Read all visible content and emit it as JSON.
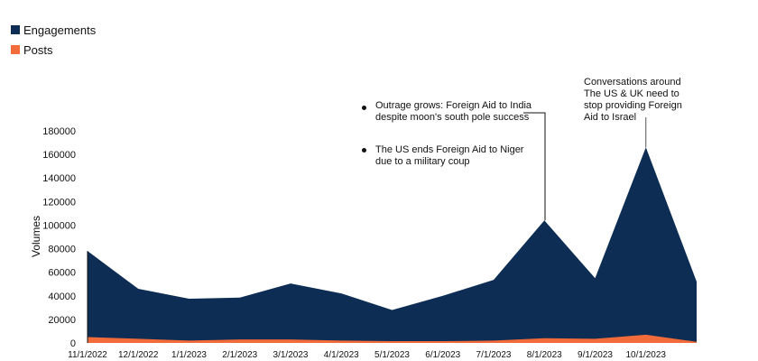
{
  "legend": [
    {
      "label": "Engagements",
      "color": "#0d2d54"
    },
    {
      "label": "Posts",
      "color": "#f26b3a"
    }
  ],
  "annotations": {
    "aug_1": "Outrage grows: Foreign Aid to India despite moon's south pole success",
    "aug_2": "The US ends Foreign Aid to Niger due to a military coup",
    "oct": "Conversations around The US & UK need to stop providing Foreign Aid to Israel"
  },
  "chart_data": {
    "type": "area",
    "title": "",
    "xlabel": "",
    "ylabel": "Volumes",
    "ylim": [
      0,
      180000
    ],
    "yticks": [
      0,
      20000,
      40000,
      60000,
      80000,
      100000,
      120000,
      140000,
      160000,
      180000
    ],
    "grid": false,
    "legend_position": "top-left",
    "categories": [
      "11/1/2022",
      "12/1/2022",
      "1/1/2023",
      "2/1/2023",
      "3/1/2023",
      "4/1/2023",
      "5/1/2023",
      "6/1/2023",
      "7/1/2023",
      "8/1/2023",
      "9/1/2023",
      "10/1/2023",
      ""
    ],
    "series": [
      {
        "name": "Engagements",
        "color": "#0d2d54",
        "values": [
          78000,
          46000,
          37500,
          38500,
          50500,
          42000,
          28000,
          40000,
          53500,
          104000,
          55000,
          166000,
          52000
        ]
      },
      {
        "name": "Posts",
        "color": "#f26b3a",
        "values": [
          5000,
          3500,
          2000,
          3000,
          3000,
          2000,
          1500,
          1500,
          2000,
          4000,
          3500,
          7000,
          1000
        ]
      }
    ]
  }
}
